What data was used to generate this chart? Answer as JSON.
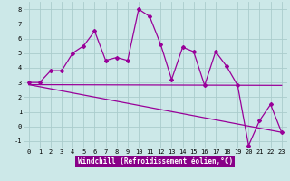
{
  "xlabel": "Windchill (Refroidissement éolien,°C)",
  "bg_color": "#cce8e8",
  "grid_color": "#aacccc",
  "line_color": "#990099",
  "x_hours": [
    0,
    1,
    2,
    3,
    4,
    5,
    6,
    7,
    8,
    9,
    10,
    11,
    12,
    13,
    14,
    15,
    16,
    17,
    18,
    19,
    20,
    21,
    22,
    23
  ],
  "main_y": [
    3.0,
    3.0,
    3.8,
    3.8,
    5.0,
    5.5,
    6.5,
    4.5,
    4.7,
    4.5,
    8.0,
    7.5,
    5.6,
    3.2,
    5.4,
    5.1,
    2.8,
    5.1,
    4.1,
    2.8,
    -1.3,
    0.4,
    1.5,
    -0.4
  ],
  "trend1_x": [
    0,
    23
  ],
  "trend1_y": [
    2.85,
    2.8
  ],
  "trend2_x": [
    0,
    23
  ],
  "trend2_y": [
    2.85,
    -0.4
  ],
  "ylim": [
    -1.5,
    8.5
  ],
  "xlim": [
    -0.5,
    23.5
  ],
  "yticks": [
    -1,
    0,
    1,
    2,
    3,
    4,
    5,
    6,
    7,
    8
  ],
  "xticks": [
    0,
    1,
    2,
    3,
    4,
    5,
    6,
    7,
    8,
    9,
    10,
    11,
    12,
    13,
    14,
    15,
    16,
    17,
    18,
    19,
    20,
    21,
    22,
    23
  ],
  "xlabel_bg": "#880088",
  "xlabel_fg": "#ffffff",
  "xlabel_fontsize": 5.5,
  "tick_fontsize": 5.0
}
